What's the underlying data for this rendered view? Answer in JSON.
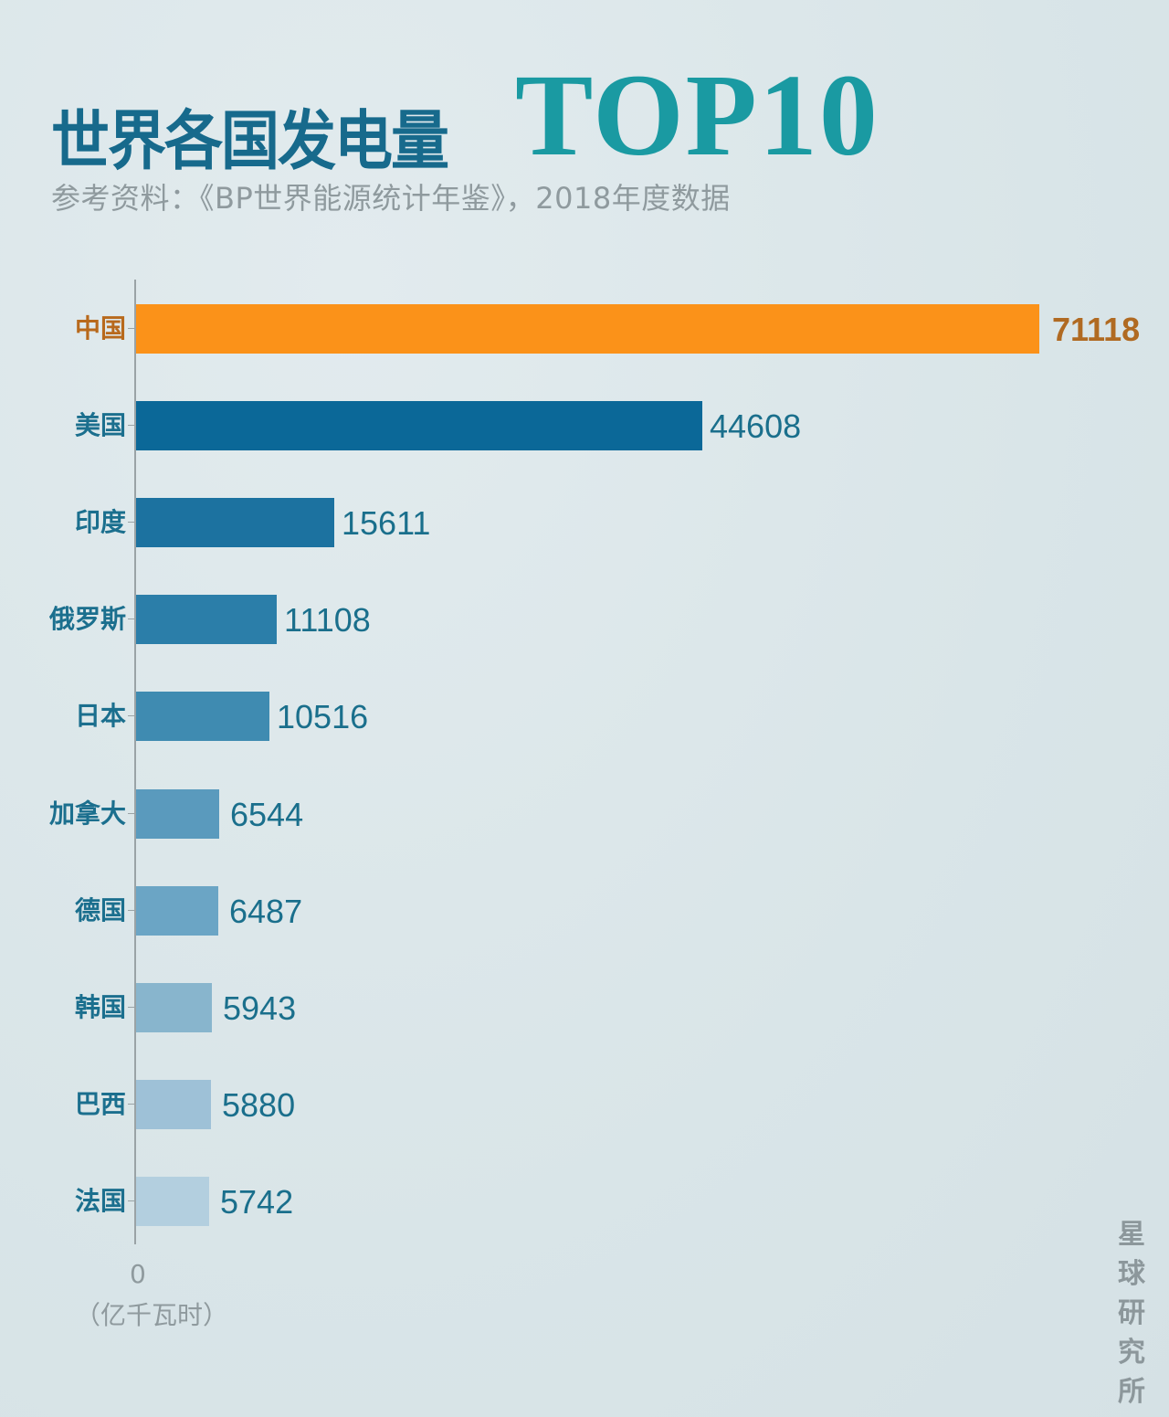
{
  "header": {
    "title_cn": "世界各国发电量",
    "title_en": "TOP10",
    "subtitle": "参考资料：《BP世界能源统计年鉴》，2018年度数据"
  },
  "axis": {
    "zero_label": "0",
    "unit_label": "（亿千瓦时）"
  },
  "watermark": "星球研究所",
  "colors": {
    "background": "#dbe6e9",
    "highlight_bar": "#fb9219",
    "highlight_text": "#b06a22",
    "label_text": "#1b6f8e",
    "title_cn": "#176a8c",
    "title_en": "#1a9aa2",
    "bar_gradient": [
      "#0b6898",
      "#1a70a0",
      "#2a7ba7",
      "#3a86b0",
      "#5a99bd",
      "#6aa3c4",
      "#8ab5ce",
      "#9cc0d6",
      "#b2ceDE"
    ]
  },
  "rows": [
    {
      "label": "中国",
      "value": "71118",
      "color": "#fb9219",
      "highlight": true
    },
    {
      "label": "美国",
      "value": "44608",
      "color": "#0b6898"
    },
    {
      "label": "印度",
      "value": "15611",
      "color": "#1c72a0"
    },
    {
      "label": "俄罗斯",
      "value": "11108",
      "color": "#2b7ea9"
    },
    {
      "label": "日本",
      "value": "10516",
      "color": "#3f8bb1"
    },
    {
      "label": "加拿大",
      "value": "6544",
      "color": "#5a9abd"
    },
    {
      "label": "德国",
      "value": "6487",
      "color": "#6ba5c5"
    },
    {
      "label": "韩国",
      "value": "5943",
      "color": "#88b5cd"
    },
    {
      "label": "巴西",
      "value": "5880",
      "color": "#9ec1d7"
    },
    {
      "label": "法国",
      "value": "5742",
      "color": "#b3cfdf"
    }
  ],
  "chart_data": {
    "type": "bar",
    "orientation": "horizontal",
    "title": "世界各国发电量TOP10",
    "subtitle": "参考资料：《BP世界能源统计年鉴》，2018年度数据",
    "categories": [
      "中国",
      "美国",
      "印度",
      "俄罗斯",
      "日本",
      "加拿大",
      "德国",
      "韩国",
      "巴西",
      "法国"
    ],
    "values": [
      71118,
      44608,
      15611,
      11108,
      10516,
      6544,
      6487,
      5943,
      5880,
      5742
    ],
    "xlabel": "（亿千瓦时）",
    "ylabel": "",
    "xlim": [
      0,
      71118
    ],
    "x_ticks": [
      "0"
    ],
    "grid": false,
    "legend": null,
    "data_labels": true,
    "highlight": "中国"
  }
}
